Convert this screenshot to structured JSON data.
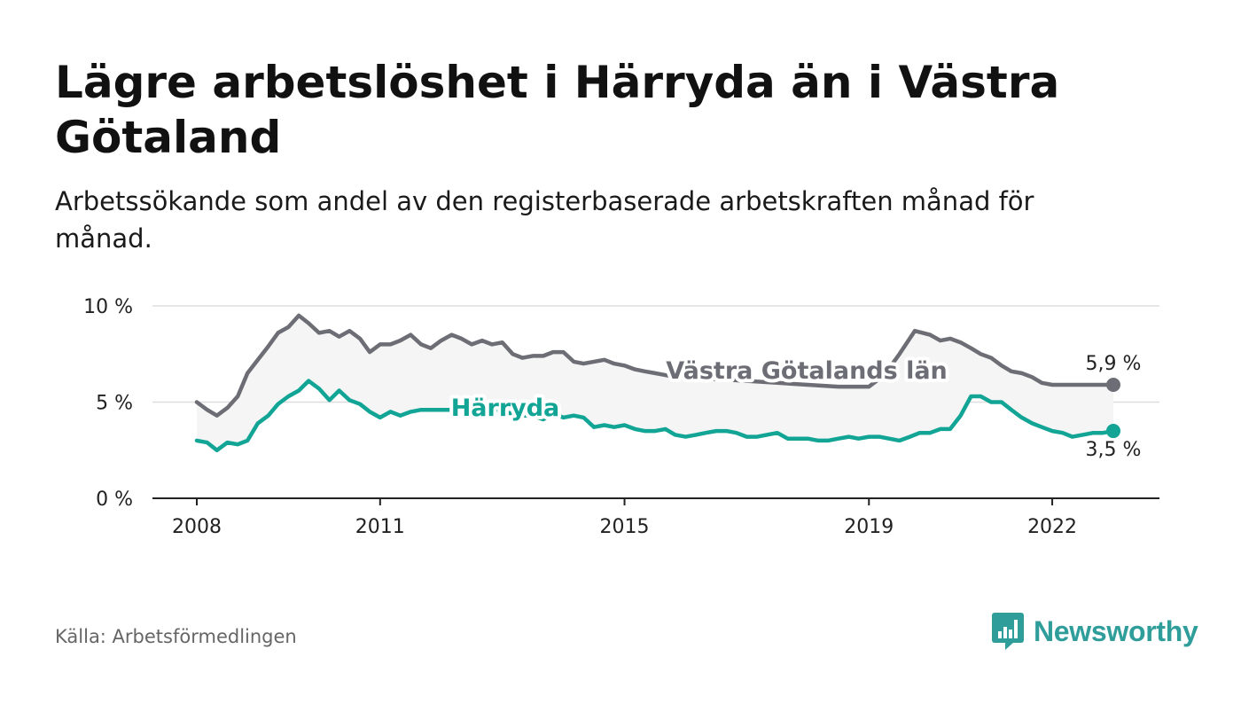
{
  "title": "Lägre arbetslöshet i Härryda än i Västra Götaland",
  "subtitle": "Arbetssökande som andel av den registerbaserade arbetskraften månad för månad.",
  "source": "Källa: Arbetsförmedlingen",
  "brand": {
    "name": "Newsworthy",
    "icon": "bar-chart-speech-bubble-icon"
  },
  "colors": {
    "region": "#6d6d75",
    "municipality": "#12a596",
    "band": "#f5f5f5",
    "grid": "#dddddd",
    "axis": "#222222"
  },
  "chart_data": {
    "type": "line",
    "title": "Lägre arbetslöshet i Härryda än i Västra Götaland",
    "xlabel": "",
    "ylabel": "",
    "xlim": [
      2008,
      2023.5
    ],
    "ylim": [
      0,
      10
    ],
    "yticks": [
      0,
      5,
      10
    ],
    "ytick_labels": [
      "0 %",
      "5 %",
      "10 %"
    ],
    "xticks": [
      2008,
      2011,
      2015,
      2019,
      2022
    ],
    "xtick_labels": [
      "2008",
      "2011",
      "2015",
      "2019",
      "2022"
    ],
    "band_between_series": true,
    "series": [
      {
        "name": "Västra Götalands län",
        "end_label": "5,9 %",
        "x": [
          2008.0,
          2008.17,
          2008.33,
          2008.5,
          2008.67,
          2008.83,
          2009.0,
          2009.17,
          2009.33,
          2009.5,
          2009.67,
          2009.83,
          2010.0,
          2010.17,
          2010.33,
          2010.5,
          2010.67,
          2010.83,
          2011.0,
          2011.17,
          2011.33,
          2011.5,
          2011.67,
          2011.83,
          2012.0,
          2012.17,
          2012.33,
          2012.5,
          2012.67,
          2012.83,
          2013.0,
          2013.17,
          2013.33,
          2013.5,
          2013.67,
          2013.83,
          2014.0,
          2014.17,
          2014.33,
          2014.5,
          2014.67,
          2014.83,
          2015.0,
          2015.17,
          2015.33,
          2015.5,
          2015.67,
          2015.83,
          2016.0,
          2016.5,
          2017.0,
          2017.5,
          2018.0,
          2018.5,
          2019.0,
          2019.25,
          2019.5,
          2019.75,
          2020.0,
          2020.17,
          2020.33,
          2020.5,
          2020.67,
          2020.83,
          2021.0,
          2021.17,
          2021.33,
          2021.5,
          2021.67,
          2021.83,
          2022.0,
          2022.17,
          2022.33,
          2022.5,
          2022.67,
          2022.83,
          2023.0
        ],
        "values": [
          5.0,
          4.6,
          4.3,
          4.7,
          5.3,
          6.5,
          7.2,
          7.9,
          8.6,
          8.9,
          9.5,
          9.1,
          8.6,
          8.7,
          8.4,
          8.7,
          8.3,
          7.6,
          8.0,
          8.0,
          8.2,
          8.5,
          8.0,
          7.8,
          8.2,
          8.5,
          8.3,
          8.0,
          8.2,
          8.0,
          8.1,
          7.5,
          7.3,
          7.4,
          7.4,
          7.6,
          7.6,
          7.1,
          7.0,
          7.1,
          7.2,
          7.0,
          6.9,
          6.7,
          6.6,
          6.5,
          6.4,
          6.3,
          6.3,
          6.2,
          6.1,
          6.0,
          5.9,
          5.8,
          5.8,
          6.4,
          7.5,
          8.7,
          8.5,
          8.2,
          8.3,
          8.1,
          7.8,
          7.5,
          7.3,
          6.9,
          6.6,
          6.5,
          6.3,
          6.0,
          5.9,
          5.9,
          5.9,
          5.9,
          5.9,
          5.9,
          5.9
        ]
      },
      {
        "name": "Härryda",
        "end_label": "3,5 %",
        "x": [
          2008.0,
          2008.17,
          2008.33,
          2008.5,
          2008.67,
          2008.83,
          2009.0,
          2009.17,
          2009.33,
          2009.5,
          2009.67,
          2009.83,
          2010.0,
          2010.17,
          2010.33,
          2010.5,
          2010.67,
          2010.83,
          2011.0,
          2011.17,
          2011.33,
          2011.5,
          2011.67,
          2011.83,
          2012.0,
          2012.17,
          2012.33,
          2012.5,
          2012.67,
          2012.83,
          2013.0,
          2013.17,
          2013.33,
          2013.5,
          2013.67,
          2013.83,
          2014.0,
          2014.17,
          2014.33,
          2014.5,
          2014.67,
          2014.83,
          2015.0,
          2015.17,
          2015.33,
          2015.5,
          2015.67,
          2015.83,
          2016.0,
          2016.17,
          2016.33,
          2016.5,
          2016.67,
          2016.83,
          2017.0,
          2017.17,
          2017.33,
          2017.5,
          2017.67,
          2017.83,
          2018.0,
          2018.17,
          2018.33,
          2018.5,
          2018.67,
          2018.83,
          2019.0,
          2019.17,
          2019.33,
          2019.5,
          2019.67,
          2019.83,
          2020.0,
          2020.17,
          2020.33,
          2020.5,
          2020.67,
          2020.83,
          2021.0,
          2021.17,
          2021.33,
          2021.5,
          2021.67,
          2021.83,
          2022.0,
          2022.17,
          2022.33,
          2022.5,
          2022.67,
          2022.83,
          2023.0
        ],
        "values": [
          3.0,
          2.9,
          2.5,
          2.9,
          2.8,
          3.0,
          3.9,
          4.3,
          4.9,
          5.3,
          5.6,
          6.1,
          5.7,
          5.1,
          5.6,
          5.1,
          4.9,
          4.5,
          4.2,
          4.5,
          4.3,
          4.5,
          4.6,
          4.6,
          4.6,
          4.6,
          4.5,
          4.6,
          4.6,
          4.7,
          4.5,
          4.4,
          4.3,
          4.3,
          4.1,
          4.4,
          4.2,
          4.3,
          4.2,
          3.7,
          3.8,
          3.7,
          3.8,
          3.6,
          3.5,
          3.5,
          3.6,
          3.3,
          3.2,
          3.3,
          3.4,
          3.5,
          3.5,
          3.4,
          3.2,
          3.2,
          3.3,
          3.4,
          3.1,
          3.1,
          3.1,
          3.0,
          3.0,
          3.1,
          3.2,
          3.1,
          3.2,
          3.2,
          3.1,
          3.0,
          3.2,
          3.4,
          3.4,
          3.6,
          3.6,
          4.3,
          5.3,
          5.3,
          5.0,
          5.0,
          4.6,
          4.2,
          3.9,
          3.7,
          3.5,
          3.4,
          3.2,
          3.3,
          3.4,
          3.4,
          3.5
        ]
      }
    ]
  }
}
